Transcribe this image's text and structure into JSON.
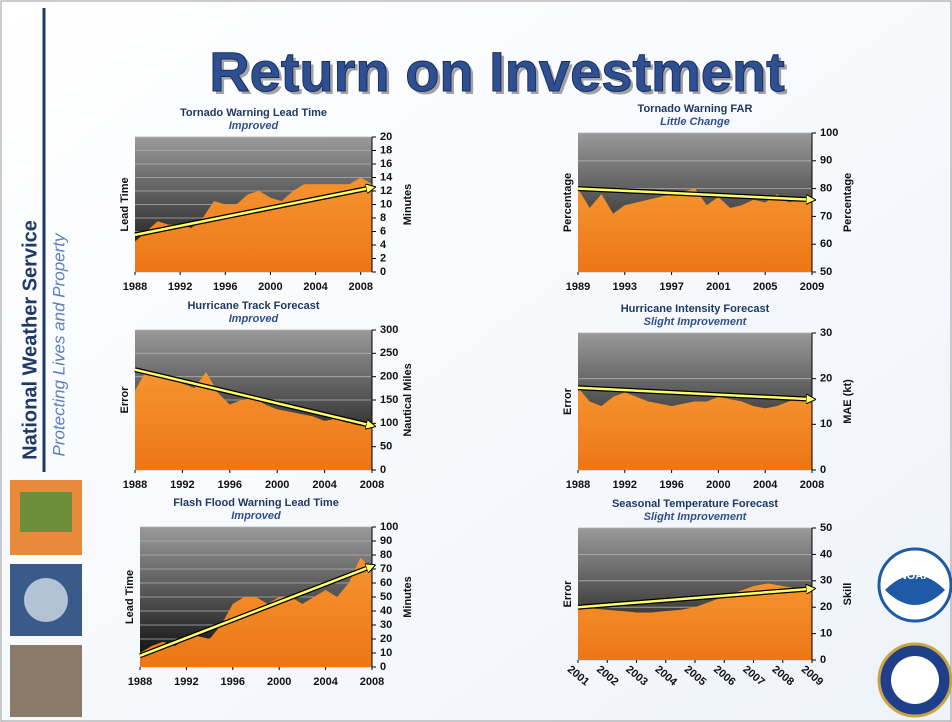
{
  "title": "Return on Investment",
  "sidebar": {
    "organization": "National Weather Service",
    "tagline": "Protecting Lives and Property"
  },
  "logos": [
    "NOAA"
  ],
  "chart_data": [
    {
      "type": "area",
      "title": "Tornado Warning Lead Time",
      "subtitle": "Improved",
      "y_label": "Lead Time",
      "y2_label": "Minutes",
      "x": [
        1988,
        1989,
        1990,
        1991,
        1992,
        1993,
        1994,
        1995,
        1996,
        1997,
        1998,
        1999,
        2000,
        2001,
        2002,
        2003,
        2004,
        2005,
        2006,
        2007,
        2008,
        2009
      ],
      "values": [
        4.5,
        6,
        7.5,
        7,
        7,
        6.5,
        8,
        10.5,
        10,
        10,
        11.5,
        12,
        11,
        10.5,
        12,
        13,
        13,
        13,
        13,
        13,
        14,
        13
      ],
      "trend": [
        5.5,
        12.5
      ],
      "color": "#f7891e",
      "xlim": [
        1988,
        2009
      ],
      "xticks": [
        1988,
        1992,
        1996,
        2000,
        2004,
        2008
      ],
      "ylim": [
        0,
        20
      ],
      "yticks": [
        0,
        2,
        4,
        6,
        8,
        10,
        12,
        14,
        16,
        18,
        20
      ],
      "grid": true
    },
    {
      "type": "area",
      "title": "Tornado Warning FAR",
      "subtitle": "Little Change",
      "y_label": "Percentage",
      "y2_label": "Percentage",
      "x": [
        1989,
        1990,
        1991,
        1992,
        1993,
        1994,
        1995,
        1996,
        1997,
        1998,
        1999,
        2000,
        2001,
        2002,
        2003,
        2004,
        2005,
        2006,
        2007,
        2008,
        2009
      ],
      "values": [
        80,
        73,
        78,
        71,
        74,
        75,
        76,
        77,
        78,
        79,
        80,
        74,
        77,
        73,
        74,
        76,
        75,
        78,
        75,
        76,
        76
      ],
      "trend": [
        80,
        76
      ],
      "color": "#f7891e",
      "xlim": [
        1989,
        2009
      ],
      "xticks": [
        1989,
        1993,
        1997,
        2001,
        2005,
        2009
      ],
      "ylim": [
        50,
        100
      ],
      "yticks": [
        50,
        60,
        70,
        80,
        90,
        100
      ],
      "grid": true
    },
    {
      "type": "area",
      "title": "Hurricane Track Forecast",
      "subtitle": "Improved",
      "y_label": "Error",
      "y2_label": "Nautical Miles",
      "x": [
        1988,
        1989,
        1990,
        1991,
        1992,
        1993,
        1994,
        1995,
        1996,
        1997,
        1998,
        1999,
        2000,
        2001,
        2002,
        2003,
        2004,
        2005,
        2006,
        2007,
        2008
      ],
      "values": [
        170,
        215,
        200,
        195,
        185,
        175,
        210,
        165,
        140,
        150,
        155,
        140,
        130,
        125,
        120,
        115,
        105,
        110,
        100,
        95,
        90
      ],
      "trend": [
        215,
        95
      ],
      "color": "#f7891e",
      "xlim": [
        1988,
        2008
      ],
      "xticks": [
        1988,
        1992,
        1996,
        2000,
        2004,
        2008
      ],
      "ylim": [
        0,
        300
      ],
      "yticks": [
        0,
        50,
        100,
        150,
        200,
        250,
        300
      ],
      "grid": true
    },
    {
      "type": "area",
      "title": "Hurricane Intensity Forecast",
      "subtitle": "Slight Improvement",
      "y_label": "Error",
      "y2_label": "MAE (kt)",
      "x": [
        1988,
        1989,
        1990,
        1991,
        1992,
        1993,
        1994,
        1995,
        1996,
        1997,
        1998,
        1999,
        2000,
        2001,
        2002,
        2003,
        2004,
        2005,
        2006,
        2007,
        2008
      ],
      "values": [
        18,
        15,
        14,
        16,
        17,
        16,
        15,
        14.5,
        14,
        14.5,
        15,
        15,
        16,
        15.5,
        15,
        14,
        13.5,
        14,
        15,
        16,
        16
      ],
      "trend": [
        18,
        15.5
      ],
      "color": "#f7891e",
      "xlim": [
        1988,
        2008
      ],
      "xticks": [
        1988,
        1992,
        1996,
        2000,
        2004,
        2008
      ],
      "ylim": [
        0,
        30
      ],
      "yticks": [
        0,
        10,
        20,
        30
      ],
      "grid": true
    },
    {
      "type": "area",
      "title": "Flash Flood Warning Lead Time",
      "subtitle": "Improved",
      "y_label": "Lead Time",
      "y2_label": "Minutes",
      "x": [
        1988,
        1989,
        1990,
        1991,
        1992,
        1993,
        1994,
        1995,
        1996,
        1997,
        1998,
        1999,
        2000,
        2001,
        2002,
        2003,
        2004,
        2005,
        2006,
        2007,
        2008
      ],
      "values": [
        10,
        15,
        18,
        15,
        20,
        22,
        20,
        30,
        45,
        50,
        50,
        45,
        50,
        50,
        45,
        50,
        55,
        50,
        60,
        78,
        70
      ],
      "trend": [
        8,
        72
      ],
      "color": "#f7891e",
      "xlim": [
        1988,
        2008
      ],
      "xticks": [
        1988,
        1992,
        1996,
        2000,
        2004,
        2008
      ],
      "ylim": [
        0,
        100
      ],
      "yticks": [
        0,
        10,
        20,
        30,
        40,
        50,
        60,
        70,
        80,
        90,
        100
      ],
      "grid": true
    },
    {
      "type": "area",
      "title": "Seasonal Temperature Forecast",
      "subtitle": "Slight Improvement",
      "y_label": "Error",
      "y2_label": "Skill",
      "x": [
        2001,
        2001.5,
        2002,
        2002.5,
        2003,
        2003.5,
        2004,
        2004.5,
        2005,
        2005.5,
        2006,
        2006.5,
        2007,
        2007.5,
        2008,
        2008.5,
        2009
      ],
      "values": [
        20,
        19.5,
        19,
        18.5,
        18,
        18,
        18.5,
        19,
        20,
        22,
        24,
        26,
        28,
        29,
        28,
        27,
        27
      ],
      "trend": [
        20,
        27
      ],
      "color": "#f7891e",
      "rotate_xticks": true,
      "xlim": [
        2001,
        2009
      ],
      "xticks": [
        2001,
        2002,
        2003,
        2004,
        2005,
        2006,
        2007,
        2008,
        2009
      ],
      "ylim": [
        0,
        50
      ],
      "yticks": [
        0,
        10,
        20,
        30,
        40,
        50
      ],
      "grid": true
    }
  ]
}
